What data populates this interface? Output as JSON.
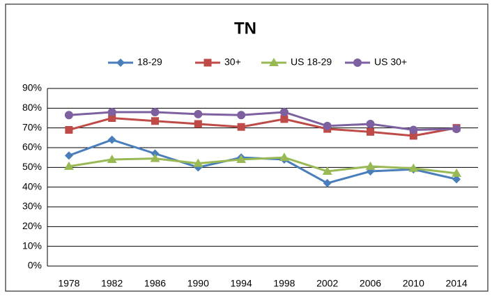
{
  "chart_data": {
    "type": "line",
    "title": "TN",
    "categories": [
      "1978",
      "1982",
      "1986",
      "1990",
      "1994",
      "1998",
      "2002",
      "2006",
      "2010",
      "2014"
    ],
    "series": [
      {
        "name": "18-29",
        "color": "#4a7ebb",
        "marker": "diamond",
        "values": [
          56,
          64,
          57,
          50,
          55,
          54,
          42,
          48,
          49,
          44
        ]
      },
      {
        "name": "30+",
        "color": "#be4b48",
        "marker": "square",
        "values": [
          69,
          75,
          73.5,
          72,
          70.5,
          74.5,
          69.5,
          68,
          66,
          70
        ]
      },
      {
        "name": "US 18-29",
        "color": "#98b954",
        "marker": "triangle",
        "values": [
          50.5,
          54,
          54.5,
          52,
          54,
          55,
          48,
          50.5,
          49.5,
          47
        ]
      },
      {
        "name": "US 30+",
        "color": "#7d60a0",
        "marker": "circle",
        "values": [
          76.5,
          78,
          78,
          77,
          76.5,
          78,
          71,
          72,
          69,
          69.5
        ]
      }
    ],
    "ylim": [
      0,
      90
    ],
    "yticks": [
      {
        "value": 0,
        "label": "0%"
      },
      {
        "value": 10,
        "label": "10%"
      },
      {
        "value": 20,
        "label": "20%"
      },
      {
        "value": 30,
        "label": "30%"
      },
      {
        "value": 40,
        "label": "40%"
      },
      {
        "value": 50,
        "label": "50%"
      },
      {
        "value": 60,
        "label": "60%"
      },
      {
        "value": 70,
        "label": "70%"
      },
      {
        "value": 80,
        "label": "80%"
      },
      {
        "value": 90,
        "label": "90%"
      }
    ],
    "grid": true,
    "legend": "top"
  }
}
